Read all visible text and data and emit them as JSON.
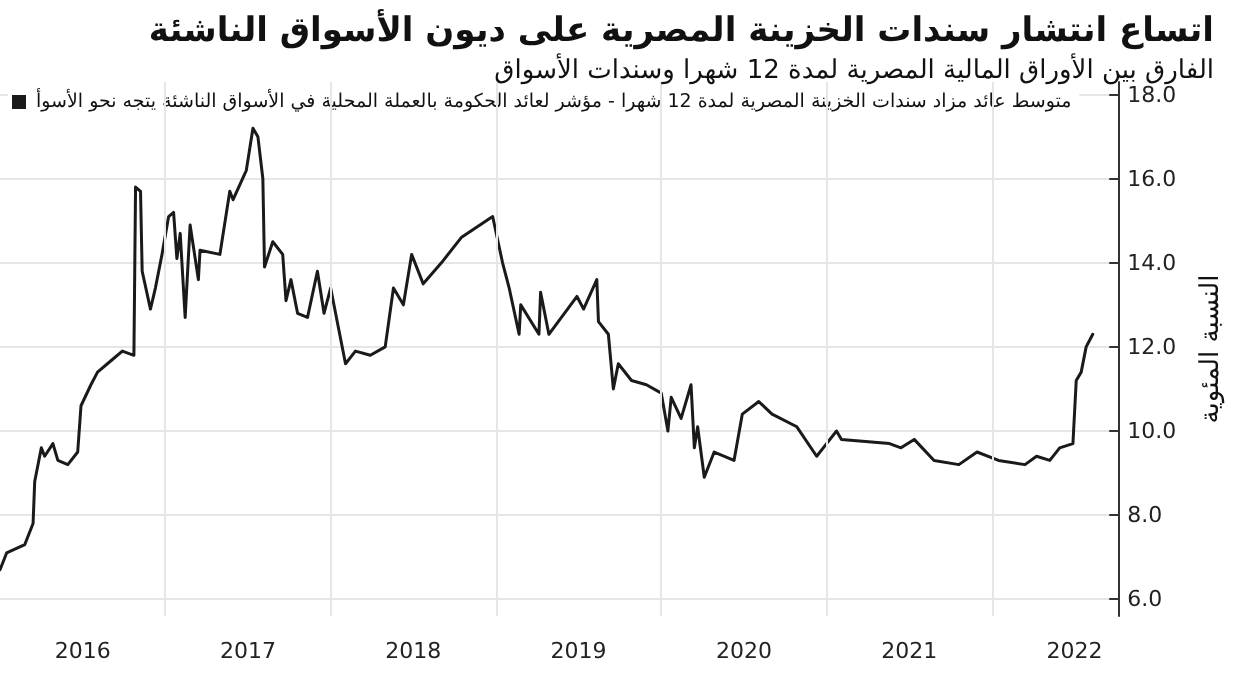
{
  "chart_data": {
    "type": "line",
    "title": "اتساع انتشار سندات الخزينة المصرية على ديون الأسواق الناشئة",
    "subtitle": "الفارق بين الأوراق المالية المصرية لمدة 12 شهرا وسندات الأسواق",
    "ylabel": "النسبة المئوية",
    "x": [
      2016.0,
      2016.04,
      2016.15,
      2016.2,
      2016.21,
      2016.25,
      2016.27,
      2016.32,
      2016.35,
      2016.41,
      2016.47,
      2016.49,
      2016.55,
      2016.59,
      2016.68,
      2016.74,
      2016.81,
      2016.82,
      2016.85,
      2016.86,
      2016.91,
      2016.94,
      2016.98,
      2017.02,
      2017.05,
      2017.07,
      2017.09,
      2017.12,
      2017.15,
      2017.2,
      2017.21,
      2017.33,
      2017.39,
      2017.41,
      2017.49,
      2017.53,
      2017.56,
      2017.59,
      2017.6,
      2017.65,
      2017.71,
      2017.73,
      2017.76,
      2017.8,
      2017.86,
      2017.92,
      2017.96,
      2018.0,
      2018.04,
      2018.09,
      2018.15,
      2018.24,
      2018.33,
      2018.38,
      2018.44,
      2018.49,
      2018.56,
      2018.67,
      2018.79,
      2018.98,
      2019.04,
      2019.08,
      2019.14,
      2019.15,
      2019.26,
      2019.27,
      2019.32,
      2019.49,
      2019.53,
      2019.61,
      2019.62,
      2019.68,
      2019.71,
      2019.74,
      2019.82,
      2019.91,
      2020.0,
      2020.04,
      2020.06,
      2020.12,
      2020.18,
      2020.2,
      2020.22,
      2020.26,
      2020.32,
      2020.44,
      2020.49,
      2020.59,
      2020.67,
      2020.82,
      2020.94,
      2021.0,
      2021.06,
      2021.09,
      2021.38,
      2021.45,
      2021.53,
      2021.65,
      2021.8,
      2021.91,
      2022.04,
      2022.2,
      2022.27,
      2022.35,
      2022.41,
      2022.49,
      2022.51,
      2022.54,
      2022.57,
      2022.61
    ],
    "series": [
      {
        "name": "متوسط عائد مزاد سندات الخزينة المصرية لمدة 12 شهرا - مؤشر لعائد الحكومة بالعملة المحلية في الأسواق الناشئة يتجه نحو الأسوأ",
        "color": "#1a1a1a",
        "values": [
          6.7,
          7.1,
          7.3,
          7.8,
          8.8,
          9.6,
          9.4,
          9.7,
          9.3,
          9.2,
          9.5,
          10.6,
          11.1,
          11.4,
          11.7,
          11.9,
          11.8,
          15.8,
          15.7,
          13.8,
          12.9,
          13.4,
          14.2,
          15.1,
          15.2,
          14.1,
          14.7,
          12.7,
          14.9,
          13.6,
          14.3,
          14.2,
          15.7,
          15.5,
          16.2,
          17.2,
          17.0,
          16.0,
          13.9,
          14.5,
          14.2,
          13.1,
          13.6,
          12.8,
          12.7,
          13.8,
          12.8,
          13.4,
          12.6,
          11.6,
          11.9,
          11.8,
          12.0,
          13.4,
          13.0,
          14.2,
          13.5,
          14.0,
          14.6,
          15.1,
          14.0,
          13.4,
          12.3,
          13.0,
          12.3,
          13.3,
          12.3,
          13.2,
          12.9,
          13.6,
          12.6,
          12.3,
          11.0,
          11.6,
          11.2,
          11.1,
          10.9,
          10.0,
          10.8,
          10.3,
          11.1,
          9.6,
          10.1,
          8.9,
          9.5,
          9.3,
          10.4,
          10.7,
          10.4,
          10.1,
          9.4,
          9.7,
          10.0,
          9.8,
          9.7,
          9.6,
          9.8,
          9.3,
          9.2,
          9.5,
          9.3,
          9.2,
          9.4,
          9.3,
          9.6,
          9.7,
          11.2,
          11.4,
          12.0,
          12.3
        ]
      }
    ],
    "xlim": [
      2016.0,
      2022.77
    ],
    "xticks": [
      {
        "value": 2016.5,
        "label": "2016"
      },
      {
        "value": 2017,
        "label": null
      },
      {
        "value": 2017.5,
        "label": "2017"
      },
      {
        "value": 2018,
        "label": null
      },
      {
        "value": 2018.5,
        "label": "2018"
      },
      {
        "value": 2019,
        "label": null
      },
      {
        "value": 2019.5,
        "label": "2019"
      },
      {
        "value": 2020,
        "label": null
      },
      {
        "value": 2020.5,
        "label": "2020"
      },
      {
        "value": 2021,
        "label": null
      },
      {
        "value": 2021.5,
        "label": "2021"
      },
      {
        "value": 2022,
        "label": null
      },
      {
        "value": 2022.5,
        "label": "2022"
      }
    ],
    "ylim": [
      5.6,
      18.3
    ],
    "yticks": [
      {
        "value": 6,
        "label": "6.0"
      },
      {
        "value": 8,
        "label": "8.0"
      },
      {
        "value": 10,
        "label": "10.0"
      },
      {
        "value": 12,
        "label": "12.0"
      },
      {
        "value": 14,
        "label": "14.0"
      },
      {
        "value": 16,
        "label": "16.0"
      },
      {
        "value": 18,
        "label": "18.0"
      }
    ],
    "grid": true,
    "legend": "top left",
    "marker": "none",
    "line_style": "solid"
  }
}
